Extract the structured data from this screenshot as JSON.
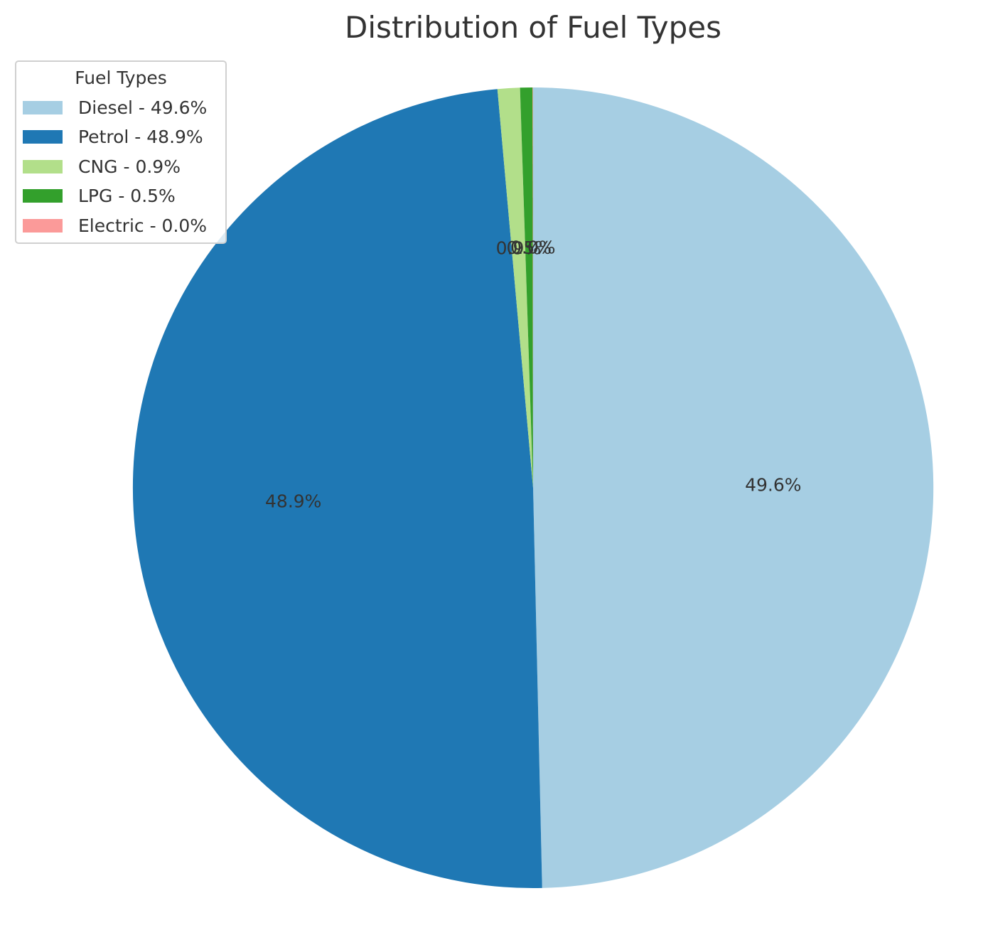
{
  "chart_data": {
    "type": "pie",
    "title": "Distribution of Fuel Types",
    "categories": [
      "Diesel",
      "Petrol",
      "CNG",
      "LPG",
      "Electric"
    ],
    "values": [
      49.6,
      48.9,
      0.9,
      0.5,
      0.02
    ],
    "slice_labels": [
      "49.6%",
      "48.9%",
      "0.9%",
      "0.5%",
      "0.0%"
    ],
    "colors": [
      "#a6cee3",
      "#1f78b4",
      "#b2df8a",
      "#33a02c",
      "#fb9a99"
    ],
    "start_angle_deg": 90,
    "direction": "clockwise",
    "legend": {
      "title": "Fuel Types",
      "placement": "top-left",
      "entries": [
        "Diesel - 49.6%",
        "Petrol - 48.9%",
        "CNG - 0.9%",
        "LPG - 0.5%",
        "Electric - 0.0%"
      ]
    }
  }
}
